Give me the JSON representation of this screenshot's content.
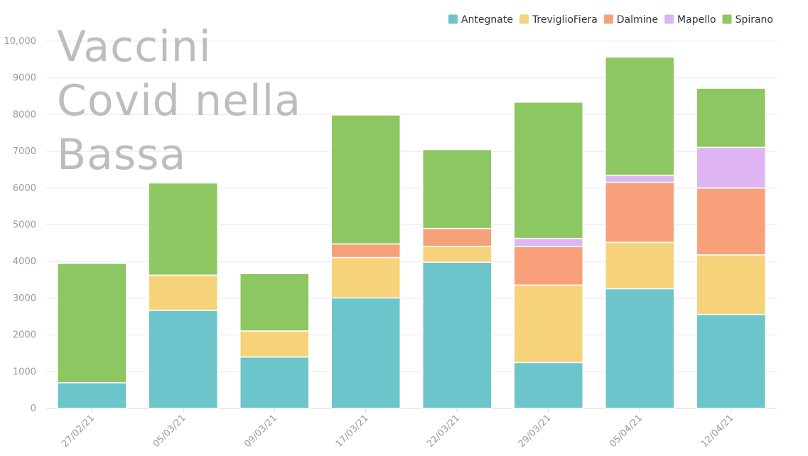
{
  "chart_data": {
    "type": "bar",
    "stacked": true,
    "title": "Vaccini Covid nella Bassa",
    "categories": [
      "27/02/21",
      "05/03/21",
      "09/03/21",
      "17/03/21",
      "22/03/21",
      "29/03/21",
      "05/04/21",
      "12/04/21"
    ],
    "series": [
      {
        "name": "Antegnate",
        "color": "#6cc5cb",
        "values": [
          700,
          2670,
          1400,
          3010,
          3980,
          1250,
          3260,
          2560
        ]
      },
      {
        "name": "TreviglioFiera",
        "color": "#f6d27a",
        "values": [
          0,
          960,
          710,
          1100,
          430,
          2110,
          1260,
          1620
        ]
      },
      {
        "name": "Dalmine",
        "color": "#f8a07a",
        "values": [
          0,
          0,
          0,
          370,
          490,
          1050,
          1640,
          1820
        ]
      },
      {
        "name": "Mapello",
        "color": "#deb4f2",
        "values": [
          0,
          0,
          0,
          0,
          0,
          220,
          190,
          1110
        ]
      },
      {
        "name": "Spirano",
        "color": "#8cc761",
        "values": [
          3250,
          2510,
          1560,
          3510,
          2150,
          3710,
          3220,
          1610
        ]
      }
    ],
    "ylim": [
      0,
      10000
    ],
    "yticks": [
      "0",
      "1000",
      "2000",
      "3000",
      "4000",
      "5000",
      "6000",
      "7000",
      "8000",
      "9000",
      "10,000"
    ],
    "legend_position": "top-right",
    "grid": true
  }
}
